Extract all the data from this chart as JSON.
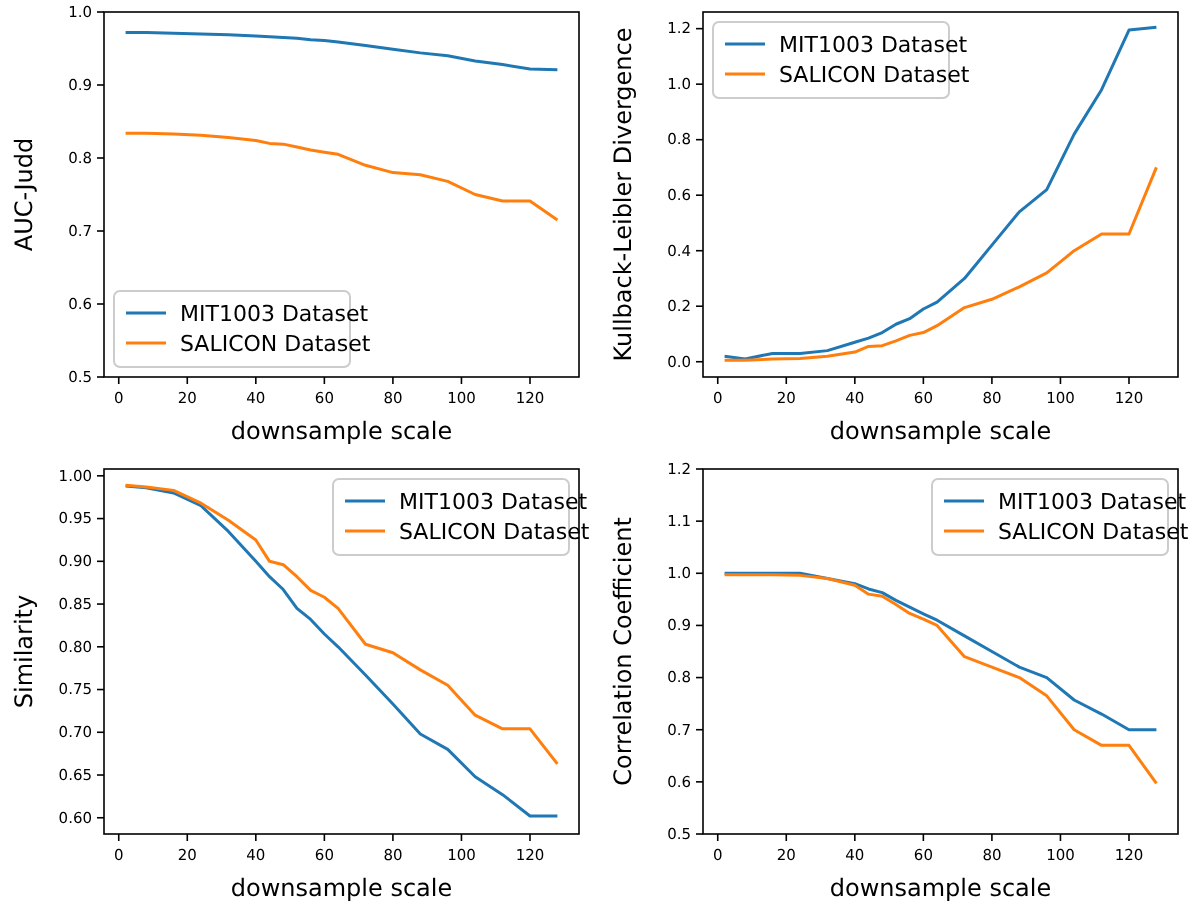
{
  "chart_data": [
    {
      "type": "line",
      "xlabel": "downsample scale",
      "ylabel": "AUC-Judd",
      "x": [
        2,
        8,
        16,
        24,
        32,
        40,
        44,
        48,
        52,
        56,
        60,
        64,
        72,
        80,
        88,
        96,
        104,
        112,
        120,
        128
      ],
      "xlim": [
        -4.3,
        134.3
      ],
      "xticks": [
        0,
        20,
        40,
        60,
        80,
        100,
        120
      ],
      "ylim": [
        0.5,
        1.0
      ],
      "yticks": [
        {
          "value": 0.5,
          "label": "0.5"
        },
        {
          "value": 0.6,
          "label": "0.6"
        },
        {
          "value": 0.7,
          "label": "0.7"
        },
        {
          "value": 0.8,
          "label": "0.8"
        },
        {
          "value": 0.9,
          "label": "0.9"
        },
        {
          "value": 1.0,
          "label": "1.0"
        }
      ],
      "legend": "bottom left",
      "series": [
        {
          "name": "MIT1003 Dataset",
          "color": "#1f77b4",
          "values": [
            0.972,
            0.972,
            0.971,
            0.97,
            0.969,
            0.967,
            0.966,
            0.965,
            0.964,
            0.962,
            0.961,
            0.959,
            0.954,
            0.949,
            0.944,
            0.94,
            0.933,
            0.928,
            0.922,
            0.921
          ]
        },
        {
          "name": "SALICON Dataset",
          "color": "#ff7f0e",
          "values": [
            0.834,
            0.834,
            0.833,
            0.831,
            0.828,
            0.824,
            0.82,
            0.819,
            0.815,
            0.811,
            0.808,
            0.805,
            0.79,
            0.78,
            0.777,
            0.768,
            0.75,
            0.741,
            0.741,
            0.715
          ]
        }
      ]
    },
    {
      "type": "line",
      "xlabel": "downsample scale",
      "ylabel": "Kullback-Leibler Divergence",
      "x": [
        2,
        8,
        16,
        24,
        32,
        40,
        44,
        48,
        52,
        56,
        60,
        64,
        72,
        80,
        88,
        96,
        104,
        112,
        120,
        128
      ],
      "xlim": [
        -4.3,
        134.3
      ],
      "xticks": [
        0,
        20,
        40,
        60,
        80,
        100,
        120
      ],
      "ylim": [
        -0.055,
        1.26
      ],
      "yticks": [
        {
          "value": 0,
          "label": "0.0"
        },
        {
          "value": 0.2,
          "label": "0.2"
        },
        {
          "value": 0.4,
          "label": "0.4"
        },
        {
          "value": 0.6,
          "label": "0.6"
        },
        {
          "value": 0.8,
          "label": "0.8"
        },
        {
          "value": 1.0,
          "label": "1.0"
        },
        {
          "value": 1.2,
          "label": "1.2"
        }
      ],
      "legend": "top left",
      "series": [
        {
          "name": "MIT1003 Dataset",
          "color": "#1f77b4",
          "values": [
            0.02,
            0.01,
            0.03,
            0.03,
            0.04,
            0.07,
            0.085,
            0.105,
            0.135,
            0.155,
            0.19,
            0.215,
            0.3,
            0.42,
            0.54,
            0.62,
            0.82,
            0.98,
            1.195,
            1.205
          ]
        },
        {
          "name": "SALICON Dataset",
          "color": "#ff7f0e",
          "values": [
            0.005,
            0.005,
            0.01,
            0.012,
            0.02,
            0.035,
            0.055,
            0.058,
            0.075,
            0.095,
            0.105,
            0.13,
            0.195,
            0.225,
            0.27,
            0.32,
            0.4,
            0.46,
            0.46,
            0.7
          ]
        }
      ]
    },
    {
      "type": "line",
      "xlabel": "downsample scale",
      "ylabel": "Similarity",
      "x": [
        2,
        8,
        16,
        24,
        32,
        40,
        44,
        48,
        52,
        56,
        60,
        64,
        72,
        80,
        88,
        96,
        104,
        112,
        120,
        128
      ],
      "xlim": [
        -4.3,
        134.3
      ],
      "xticks": [
        0,
        20,
        40,
        60,
        80,
        100,
        120
      ],
      "ylim": [
        0.581,
        1.008
      ],
      "yticks": [
        {
          "value": 0.6,
          "label": "0.60"
        },
        {
          "value": 0.65,
          "label": "0.65"
        },
        {
          "value": 0.7,
          "label": "0.70"
        },
        {
          "value": 0.75,
          "label": "0.75"
        },
        {
          "value": 0.8,
          "label": "0.80"
        },
        {
          "value": 0.85,
          "label": "0.85"
        },
        {
          "value": 0.9,
          "label": "0.90"
        },
        {
          "value": 0.95,
          "label": "0.95"
        },
        {
          "value": 1.0,
          "label": "1.00"
        }
      ],
      "legend": "top right",
      "series": [
        {
          "name": "MIT1003 Dataset",
          "color": "#1f77b4",
          "values": [
            0.988,
            0.986,
            0.98,
            0.965,
            0.935,
            0.9,
            0.882,
            0.867,
            0.845,
            0.832,
            0.815,
            0.8,
            0.767,
            0.733,
            0.698,
            0.68,
            0.648,
            0.627,
            0.602,
            0.602
          ]
        },
        {
          "name": "SALICON Dataset",
          "color": "#ff7f0e",
          "values": [
            0.989,
            0.987,
            0.983,
            0.968,
            0.948,
            0.925,
            0.9,
            0.896,
            0.882,
            0.866,
            0.858,
            0.845,
            0.803,
            0.793,
            0.773,
            0.755,
            0.72,
            0.704,
            0.704,
            0.663
          ]
        }
      ]
    },
    {
      "type": "line",
      "xlabel": "downsample scale",
      "ylabel": "Correlation Coefficient",
      "x": [
        2,
        8,
        16,
        24,
        32,
        40,
        44,
        48,
        52,
        56,
        60,
        64,
        72,
        80,
        88,
        96,
        104,
        112,
        120,
        128
      ],
      "xlim": [
        -4.3,
        134.3
      ],
      "xticks": [
        0,
        20,
        40,
        60,
        80,
        100,
        120
      ],
      "ylim": [
        0.5,
        1.2
      ],
      "yticks": [
        {
          "value": 0.5,
          "label": "0.5"
        },
        {
          "value": 0.6,
          "label": "0.6"
        },
        {
          "value": 0.7,
          "label": "0.7"
        },
        {
          "value": 0.8,
          "label": "0.8"
        },
        {
          "value": 0.9,
          "label": "0.9"
        },
        {
          "value": 1.0,
          "label": "1.0"
        },
        {
          "value": 1.1,
          "label": "1.1"
        },
        {
          "value": 1.2,
          "label": "1.2"
        }
      ],
      "legend": "top right",
      "series": [
        {
          "name": "MIT1003 Dataset",
          "color": "#1f77b4",
          "values": [
            1.0,
            1.0,
            1.0,
            1.0,
            0.99,
            0.98,
            0.97,
            0.963,
            0.948,
            0.935,
            0.922,
            0.91,
            0.88,
            0.85,
            0.82,
            0.8,
            0.757,
            0.73,
            0.7,
            0.7
          ]
        },
        {
          "name": "SALICON Dataset",
          "color": "#ff7f0e",
          "values": [
            0.997,
            0.997,
            0.997,
            0.996,
            0.99,
            0.977,
            0.96,
            0.956,
            0.94,
            0.923,
            0.912,
            0.9,
            0.84,
            0.82,
            0.8,
            0.765,
            0.7,
            0.67,
            0.67,
            0.597
          ]
        }
      ]
    }
  ]
}
